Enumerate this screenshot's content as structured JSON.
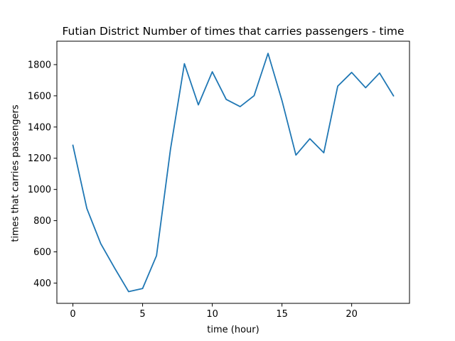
{
  "chart_data": {
    "type": "line",
    "title": "Futian District Number of times that carries passengers - time",
    "xlabel": "time (hour)",
    "ylabel": "times that carries passengers",
    "xlim": [
      -1.15,
      24.15
    ],
    "ylim": [
      270,
      1950
    ],
    "xticks": [
      0,
      5,
      10,
      15,
      20
    ],
    "yticks": [
      400,
      600,
      800,
      1000,
      1200,
      1400,
      1600,
      1800
    ],
    "grid": false,
    "legend": "none",
    "series": [
      {
        "color": "#1f77b4",
        "x": [
          0,
          1,
          2,
          3,
          4,
          5,
          6,
          7,
          8,
          9,
          10,
          11,
          12,
          13,
          14,
          15,
          16,
          17,
          18,
          19,
          20,
          21,
          22,
          23
        ],
        "values": [
          1283,
          878,
          652,
          495,
          345,
          365,
          576,
          1257,
          1806,
          1542,
          1754,
          1577,
          1531,
          1601,
          1872,
          1570,
          1220,
          1325,
          1235,
          1662,
          1750,
          1652,
          1746,
          1600
        ]
      }
    ]
  }
}
